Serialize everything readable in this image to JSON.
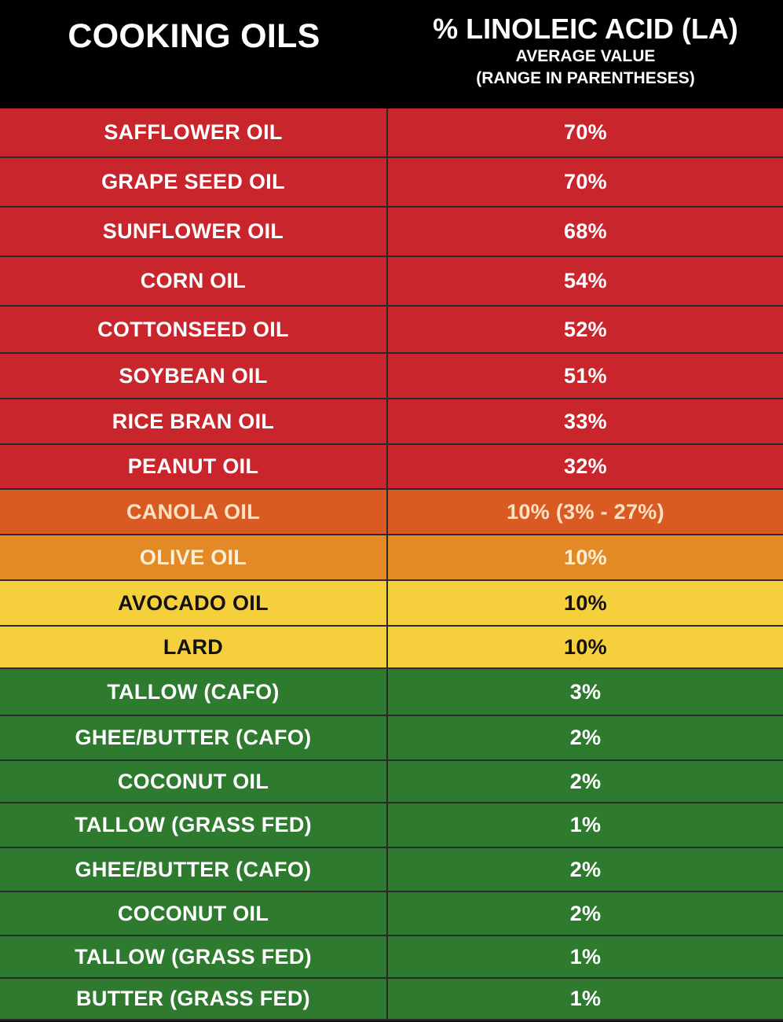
{
  "chart_data": {
    "type": "table",
    "headers": {
      "left": "COOKING OILS",
      "right_title": "% LINOLEIC ACID (LA)",
      "right_sub1": "AVERAGE VALUE",
      "right_sub2": "(RANGE IN PARENTHESES)"
    },
    "colors": {
      "red": "#c8252c",
      "orange_dark": "#d95a22",
      "orange": "#e38a26",
      "yellow": "#f6cf3c",
      "green": "#2e7a2e",
      "light_text": "#ffffff",
      "dark_text": "#111111"
    },
    "rows": [
      {
        "oil": "SAFFLOWER OIL",
        "la": "70%",
        "color": "#c8252c",
        "text": "#ffffff"
      },
      {
        "oil": "GRAPE SEED OIL",
        "la": "70%",
        "color": "#c8252c",
        "text": "#ffffff"
      },
      {
        "oil": "SUNFLOWER OIL",
        "la": "68%",
        "color": "#c8252c",
        "text": "#ffffff"
      },
      {
        "oil": "CORN OIL",
        "la": "54%",
        "color": "#c8252c",
        "text": "#ffffff"
      },
      {
        "oil": "COTTONSEED OIL",
        "la": "52%",
        "color": "#c8252c",
        "text": "#ffffff"
      },
      {
        "oil": "SOYBEAN OIL",
        "la": "51%",
        "color": "#c8252c",
        "text": "#ffffff"
      },
      {
        "oil": "RICE BRAN OIL",
        "la": "33%",
        "color": "#c8252c",
        "text": "#ffffff"
      },
      {
        "oil": "PEANUT OIL",
        "la": "32%",
        "color": "#c8252c",
        "text": "#ffffff"
      },
      {
        "oil": "CANOLA OIL",
        "la": "10% (3% - 27%)",
        "color": "#d95a22",
        "text": "#fbe3c4"
      },
      {
        "oil": "OLIVE OIL",
        "la": "10%",
        "color": "#e38a26",
        "text": "#fdf0d8"
      },
      {
        "oil": "AVOCADO OIL",
        "la": "10%",
        "color": "#f6cf3c",
        "text": "#111111"
      },
      {
        "oil": "LARD",
        "la": "10%",
        "color": "#f6cf3c",
        "text": "#111111"
      },
      {
        "oil": "TALLOW (CAFO)",
        "la": "3%",
        "color": "#2e7a2e",
        "text": "#ffffff"
      },
      {
        "oil": "GHEE/BUTTER (CAFO)",
        "la": "2%",
        "color": "#2e7a2e",
        "text": "#ffffff"
      },
      {
        "oil": "COCONUT OIL",
        "la": "2%",
        "color": "#2e7a2e",
        "text": "#ffffff"
      },
      {
        "oil": "TALLOW (GRASS FED)",
        "la": "1%",
        "color": "#2e7a2e",
        "text": "#ffffff"
      },
      {
        "oil": "GHEE/BUTTER (CAFO)",
        "la": "2%",
        "color": "#2e7a2e",
        "text": "#ffffff"
      },
      {
        "oil": "COCONUT OIL",
        "la": "2%",
        "color": "#2e7a2e",
        "text": "#ffffff"
      },
      {
        "oil": "TALLOW (GRASS FED)",
        "la": "1%",
        "color": "#2e7a2e",
        "text": "#ffffff"
      },
      {
        "oil": "BUTTER (GRASS FED)",
        "la": "1%",
        "color": "#2e7a2e",
        "text": "#ffffff"
      }
    ]
  }
}
